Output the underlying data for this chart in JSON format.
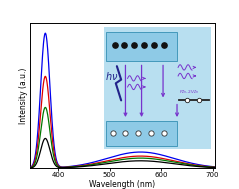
{
  "xlabel": "Wavelength (nm)",
  "ylabel": "Intensity (a.u.)",
  "xlim": [
    345,
    705
  ],
  "ylim": [
    0,
    1.08
  ],
  "peak_wavelength": 375,
  "uv_sigma": 9,
  "broad_peak": 560,
  "broad_sigma": 65,
  "lines": [
    {
      "color": "#0000ee",
      "peak_scale": 1.0,
      "broad_scale": 0.12
    },
    {
      "color": "#dd0000",
      "peak_scale": 0.68,
      "broad_scale": 0.09
    },
    {
      "color": "#007700",
      "peak_scale": 0.45,
      "broad_scale": 0.075
    },
    {
      "color": "#000000",
      "peak_scale": 0.22,
      "broad_scale": 0.055
    }
  ],
  "xticks": [
    400,
    500,
    600,
    700
  ],
  "arrow_color": "#7733cc",
  "hv_color": "#22228a",
  "dot_color": "#111111",
  "panel_blue": "#8ecae6",
  "panel_edge": "#4499bb",
  "defect_color": "#7733cc",
  "bg_inset": "#b8dff0"
}
